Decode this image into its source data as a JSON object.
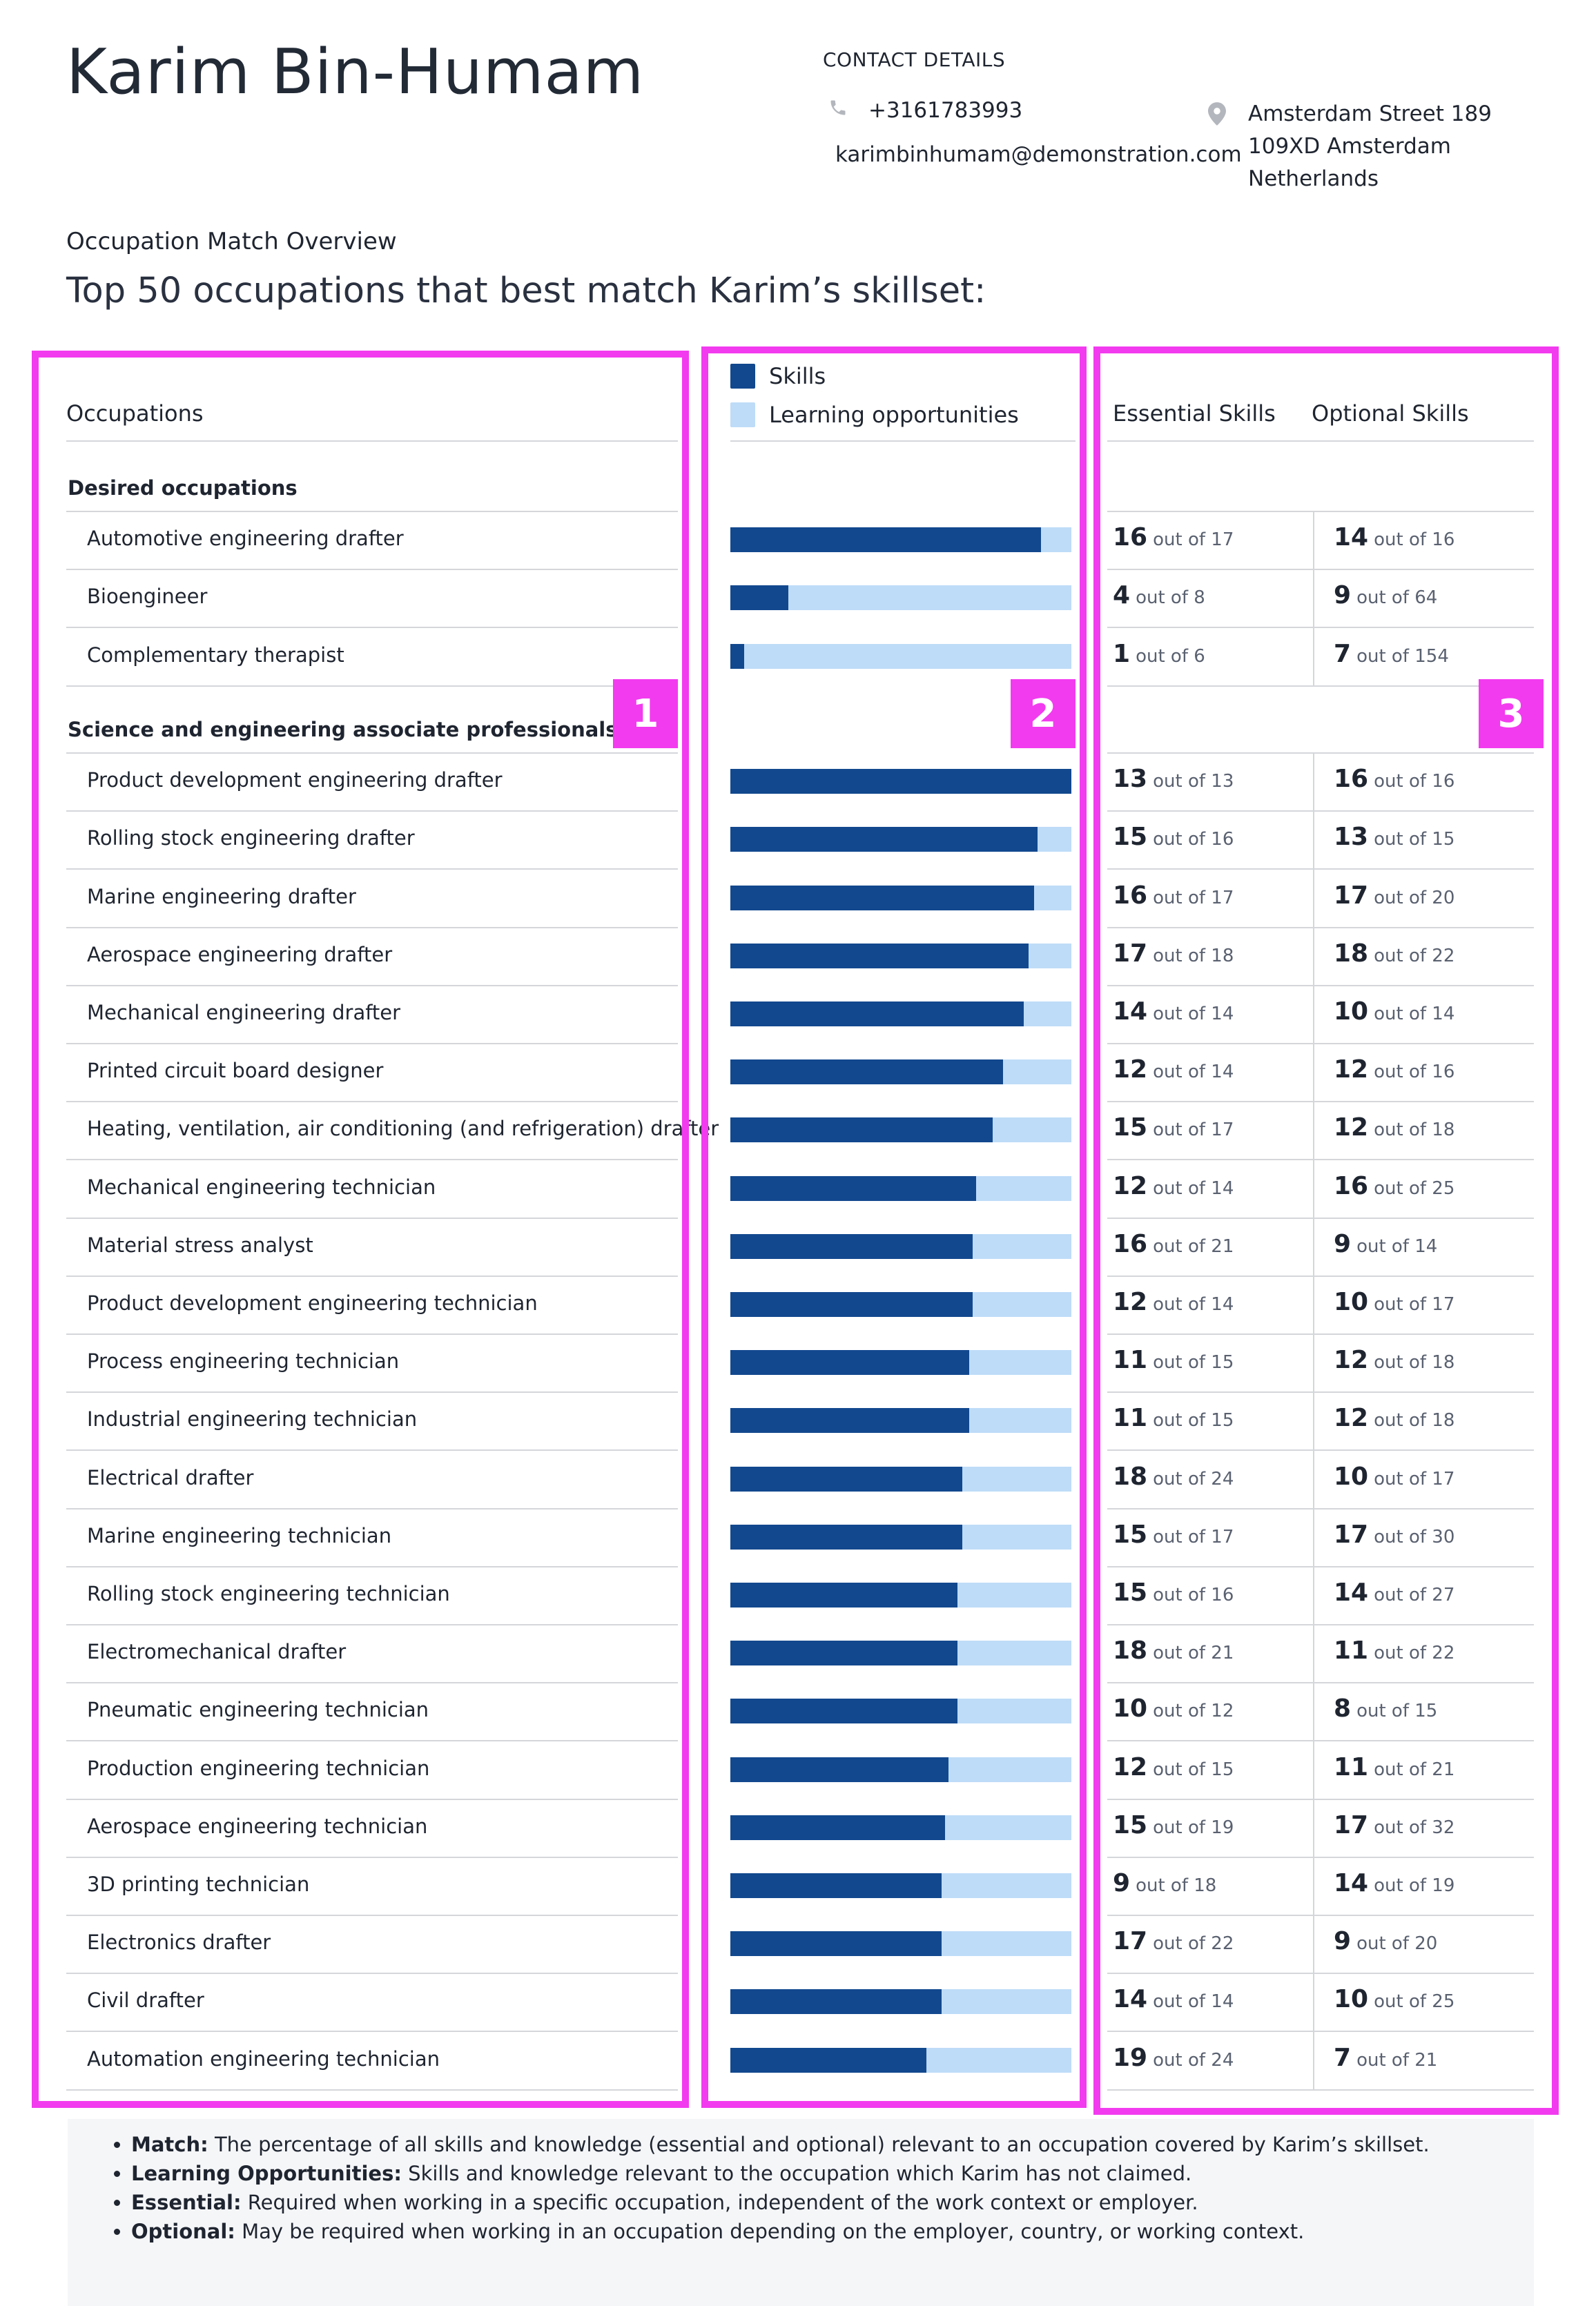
{
  "person": {
    "name": "Karim Bin-Humam"
  },
  "contact": {
    "title": "CONTACT DETAILS",
    "phone": "+3161783993",
    "email": "karimbinhumam@demonstration.com",
    "address": [
      "Amsterdam Street 189",
      "109XD Amsterdam",
      "Netherlands"
    ]
  },
  "overview": {
    "label": "Occupation Match Overview",
    "title": "Top 50 occupations that best match Karim’s skillset:"
  },
  "table": {
    "col_occupations": "Occupations",
    "col_essential": "Essential Skills",
    "col_optional": "Optional Skills",
    "legend_skills": "Skills",
    "legend_learning": "Learning opportunities",
    "out_of": "out of",
    "colors": {
      "skills": "#12488e",
      "learning": "#bedcf8"
    }
  },
  "groups": [
    {
      "title": "Desired occupations",
      "rows": [
        {
          "name": "Automotive engineering drafter",
          "match": 0.91,
          "ess": [
            16,
            17
          ],
          "opt": [
            14,
            16
          ]
        },
        {
          "name": "Bioengineer",
          "match": 0.17,
          "ess": [
            4,
            8
          ],
          "opt": [
            9,
            64
          ]
        },
        {
          "name": "Complementary therapist",
          "match": 0.04,
          "ess": [
            1,
            6
          ],
          "opt": [
            7,
            154
          ]
        }
      ]
    },
    {
      "title": "Science and engineering associate professionals",
      "rows": [
        {
          "name": "Product development engineering drafter",
          "match": 1.0,
          "ess": [
            13,
            13
          ],
          "opt": [
            16,
            16
          ]
        },
        {
          "name": "Rolling stock engineering drafter",
          "match": 0.9,
          "ess": [
            15,
            16
          ],
          "opt": [
            13,
            15
          ]
        },
        {
          "name": "Marine engineering drafter",
          "match": 0.89,
          "ess": [
            16,
            17
          ],
          "opt": [
            17,
            20
          ]
        },
        {
          "name": "Aerospace engineering drafter",
          "match": 0.875,
          "ess": [
            17,
            18
          ],
          "opt": [
            18,
            22
          ]
        },
        {
          "name": "Mechanical engineering drafter",
          "match": 0.86,
          "ess": [
            14,
            14
          ],
          "opt": [
            10,
            14
          ]
        },
        {
          "name": "Printed circuit board designer",
          "match": 0.8,
          "ess": [
            12,
            14
          ],
          "opt": [
            12,
            16
          ]
        },
        {
          "name": "Heating, ventilation, air conditioning (and refrigeration) drafter",
          "match": 0.77,
          "ess": [
            15,
            17
          ],
          "opt": [
            12,
            18
          ]
        },
        {
          "name": "Mechanical engineering technician",
          "match": 0.72,
          "ess": [
            12,
            14
          ],
          "opt": [
            16,
            25
          ]
        },
        {
          "name": "Material stress analyst",
          "match": 0.71,
          "ess": [
            16,
            21
          ],
          "opt": [
            9,
            14
          ]
        },
        {
          "name": "Product development engineering technician",
          "match": 0.71,
          "ess": [
            12,
            14
          ],
          "opt": [
            10,
            17
          ]
        },
        {
          "name": "Process engineering technician",
          "match": 0.7,
          "ess": [
            11,
            15
          ],
          "opt": [
            12,
            18
          ]
        },
        {
          "name": "Industrial engineering technician",
          "match": 0.7,
          "ess": [
            11,
            15
          ],
          "opt": [
            12,
            18
          ]
        },
        {
          "name": "Electrical drafter",
          "match": 0.68,
          "ess": [
            18,
            24
          ],
          "opt": [
            10,
            17
          ]
        },
        {
          "name": "Marine engineering technician",
          "match": 0.68,
          "ess": [
            15,
            17
          ],
          "opt": [
            17,
            30
          ]
        },
        {
          "name": "Rolling stock engineering technician",
          "match": 0.665,
          "ess": [
            15,
            16
          ],
          "opt": [
            14,
            27
          ]
        },
        {
          "name": "Electromechanical drafter",
          "match": 0.665,
          "ess": [
            18,
            21
          ],
          "opt": [
            11,
            22
          ]
        },
        {
          "name": "Pneumatic engineering technician",
          "match": 0.665,
          "ess": [
            10,
            12
          ],
          "opt": [
            8,
            15
          ]
        },
        {
          "name": "Production engineering technician",
          "match": 0.64,
          "ess": [
            12,
            15
          ],
          "opt": [
            11,
            21
          ]
        },
        {
          "name": "Aerospace engineering technician",
          "match": 0.63,
          "ess": [
            15,
            19
          ],
          "opt": [
            17,
            32
          ]
        },
        {
          "name": "3D printing technician",
          "match": 0.62,
          "ess": [
            9,
            18
          ],
          "opt": [
            14,
            19
          ]
        },
        {
          "name": "Electronics drafter",
          "match": 0.62,
          "ess": [
            17,
            22
          ],
          "opt": [
            9,
            20
          ]
        },
        {
          "name": "Civil drafter",
          "match": 0.62,
          "ess": [
            14,
            14
          ],
          "opt": [
            10,
            25
          ]
        },
        {
          "name": "Automation engineering technician",
          "match": 0.575,
          "ess": [
            19,
            24
          ],
          "opt": [
            7,
            21
          ]
        }
      ]
    }
  ],
  "badges": [
    "1",
    "2",
    "3"
  ],
  "notes": [
    {
      "term": "Match:",
      "text": " The percentage of all skills and knowledge (essential and optional) relevant to an occupation covered by Karim’s skillset."
    },
    {
      "term": "Learning Opportunities:",
      "text": " Skills and knowledge relevant to the occupation which Karim has not claimed."
    },
    {
      "term": "Essential:",
      "text": " Required when working in a specific occupation, independent of the work context or employer."
    },
    {
      "term": "Optional:",
      "text": " May be required when working in an occupation depending on the employer, country, or working context."
    }
  ]
}
